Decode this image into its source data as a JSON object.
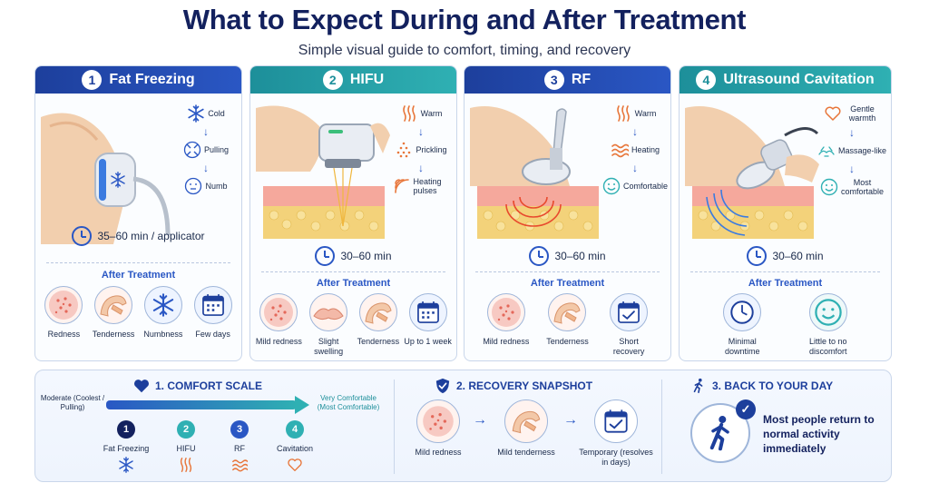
{
  "header": {
    "title": "What to Expect During and After Treatment",
    "subtitle": "Simple visual guide to comfort, timing, and recovery"
  },
  "colors": {
    "navy": "#13215e",
    "blue": "#2a57c4",
    "teal": "#2fb0b3",
    "skin": "#fff3ef"
  },
  "cards": [
    {
      "number": "1",
      "name": "Fat Freezing",
      "theme": "blue",
      "steps": [
        {
          "icon": "snowflake-icon",
          "label": "Cold"
        },
        {
          "icon": "pull-arrows-icon",
          "label": "Pulling"
        },
        {
          "icon": "numb-face-icon",
          "label": "Numb"
        }
      ],
      "time": "35–60 min / applicator",
      "after_title": "After Treatment",
      "after": [
        {
          "icon": "redness-icon",
          "label": "Redness"
        },
        {
          "icon": "tender-arm-icon",
          "label": "Tenderness"
        },
        {
          "icon": "snowflake-icon",
          "label": "Numbness"
        },
        {
          "icon": "calendar-icon",
          "label": "Few days"
        }
      ]
    },
    {
      "number": "2",
      "name": "HIFU",
      "theme": "teal",
      "steps": [
        {
          "icon": "heat-waves-icon",
          "label": "Warm"
        },
        {
          "icon": "prickle-dots-icon",
          "label": "Prickling"
        },
        {
          "icon": "heat-pulse-icon",
          "label": "Heating pulses"
        }
      ],
      "time": "30–60 min",
      "after_title": "After Treatment",
      "after": [
        {
          "icon": "redness-icon",
          "label": "Mild redness"
        },
        {
          "icon": "swelling-icon",
          "label": "Slight swelling"
        },
        {
          "icon": "tender-arm-icon",
          "label": "Tenderness"
        },
        {
          "icon": "calendar-icon",
          "label": "Up to 1 week"
        }
      ]
    },
    {
      "number": "3",
      "name": "RF",
      "theme": "blue",
      "steps": [
        {
          "icon": "heat-waves-icon",
          "label": "Warm"
        },
        {
          "icon": "heating-icon",
          "label": "Heating"
        },
        {
          "icon": "smile-icon",
          "label": "Comfortable"
        }
      ],
      "time": "30–60 min",
      "after_title": "After Treatment",
      "after": [
        {
          "icon": "redness-icon",
          "label": "Mild redness"
        },
        {
          "icon": "tender-arm-icon",
          "label": "Tenderness"
        },
        {
          "icon": "calendar-check-icon",
          "label": "Short recovery"
        }
      ]
    },
    {
      "number": "4",
      "name": "Ultrasound Cavitation",
      "theme": "teal",
      "steps": [
        {
          "icon": "heart-icon",
          "label": "Gentle warmth"
        },
        {
          "icon": "massage-hands-icon",
          "label": "Massage-like"
        },
        {
          "icon": "smile-icon",
          "label": "Most comfortable"
        }
      ],
      "time": "30–60 min",
      "after_title": "After Treatment",
      "after": [
        {
          "icon": "clock-icon",
          "label": "Minimal downtime"
        },
        {
          "icon": "smile-icon",
          "label": "Little to no discomfort"
        }
      ]
    }
  ],
  "comfort_scale": {
    "title": "1. COMFORT SCALE",
    "left_label": "Moderate (Coolest / Pulling)",
    "right_label": "Very Comfortable (Most Comfortable)",
    "nodes": [
      {
        "number": "1",
        "label": "Fat Freezing",
        "icon": "snowflake-icon"
      },
      {
        "number": "2",
        "label": "HIFU",
        "icon": "heat-waves-icon"
      },
      {
        "number": "3",
        "label": "RF",
        "icon": "heating-icon"
      },
      {
        "number": "4",
        "label": "Cavitation",
        "icon": "heart-icon"
      }
    ]
  },
  "recovery": {
    "title": "2. RECOVERY SNAPSHOT",
    "items": [
      {
        "icon": "redness-icon",
        "label": "Mild redness"
      },
      {
        "icon": "tender-arm-icon",
        "label": "Mild tenderness"
      },
      {
        "icon": "calendar-check-icon",
        "label": "Temporary (resolves in days)"
      }
    ]
  },
  "back_to_day": {
    "title": "3. BACK TO YOUR DAY",
    "message": "Most people return to normal activity immediately"
  }
}
